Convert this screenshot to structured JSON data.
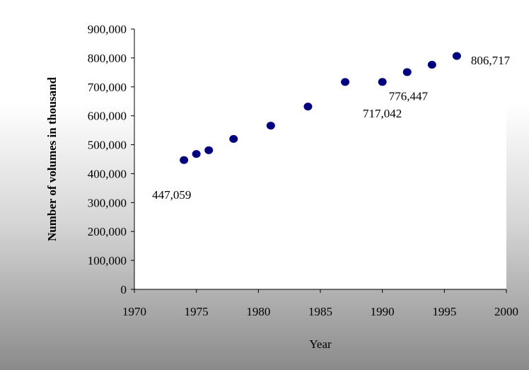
{
  "chart_data": {
    "type": "scatter",
    "title": "",
    "xlabel": "Year",
    "ylabel": "Number of volumes in thousand",
    "xlim": [
      1970,
      2000
    ],
    "ylim": [
      0,
      900000
    ],
    "x_ticks": [
      1970,
      1975,
      1980,
      1985,
      1990,
      1995,
      2000
    ],
    "y_ticks": [
      0,
      100000,
      200000,
      300000,
      400000,
      500000,
      600000,
      700000,
      800000,
      900000
    ],
    "x_tick_labels": [
      "1970",
      "1975",
      "1980",
      "1985",
      "1990",
      "1995",
      "2000"
    ],
    "y_tick_labels": [
      "0",
      "100,000",
      "200,000",
      "300,000",
      "400,000",
      "500,000",
      "600,000",
      "700,000",
      "800,000",
      "900,000"
    ],
    "grid": false,
    "marker_color": "#00007f",
    "points": [
      {
        "x": 1974,
        "y": 447059
      },
      {
        "x": 1975,
        "y": 468000
      },
      {
        "x": 1976,
        "y": 481000
      },
      {
        "x": 1978,
        "y": 520000
      },
      {
        "x": 1981,
        "y": 566000
      },
      {
        "x": 1984,
        "y": 632000
      },
      {
        "x": 1987,
        "y": 717000
      },
      {
        "x": 1990,
        "y": 717042
      },
      {
        "x": 1992,
        "y": 751000
      },
      {
        "x": 1994,
        "y": 776447
      },
      {
        "x": 1996,
        "y": 806717
      }
    ],
    "annotations": [
      {
        "text": "447,059",
        "x": 1974,
        "y": 447059,
        "anchor": "below-right"
      },
      {
        "text": "717,042",
        "x": 1990,
        "y": 717042,
        "anchor": "below"
      },
      {
        "text": "776,447",
        "x": 1994,
        "y": 776447,
        "anchor": "below-left"
      },
      {
        "text": "806,717",
        "x": 1996,
        "y": 806717,
        "anchor": "right"
      }
    ]
  }
}
